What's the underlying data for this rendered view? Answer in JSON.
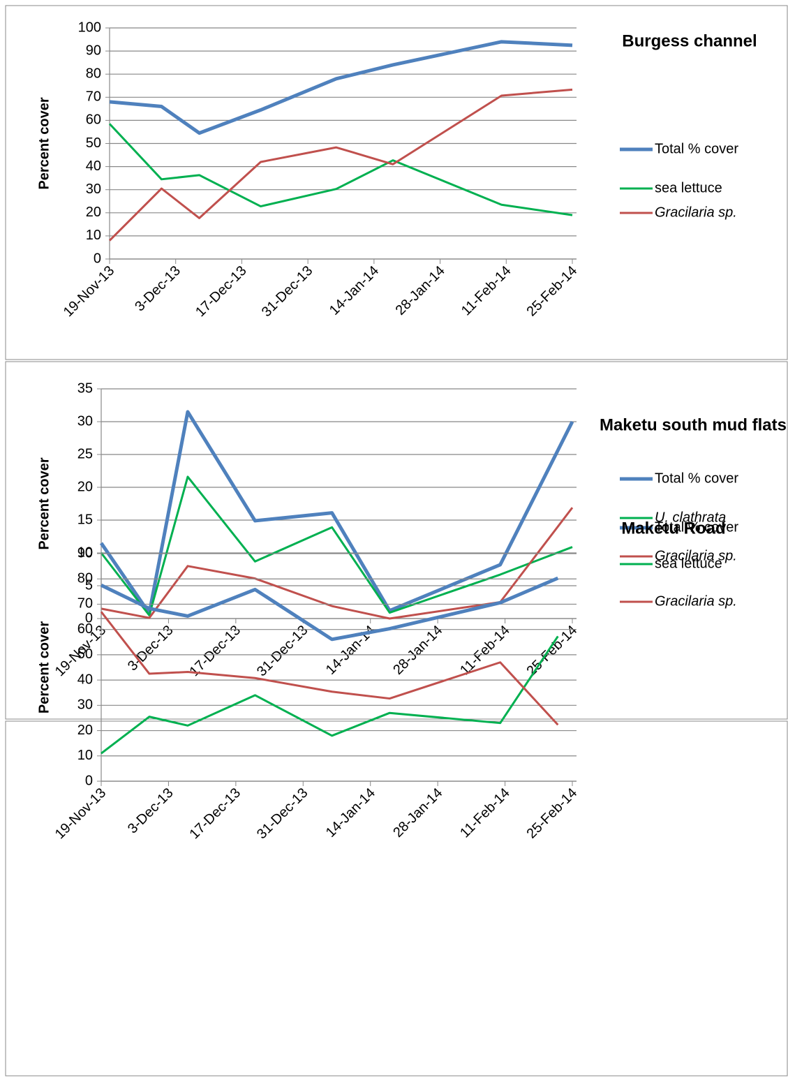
{
  "chart_data": [
    {
      "type": "line",
      "title": "Burgess channel",
      "y_label": "Percent cover",
      "x": [
        "2013-11-19",
        "2013-11-30",
        "2013-12-08",
        "2013-12-21",
        "2014-01-06",
        "2014-01-18",
        "2014-02-10",
        "2014-02-25"
      ],
      "series": [
        {
          "name": "Total % cover",
          "color": "#4f81bd",
          "values": [
            68,
            66,
            54.5,
            64.5,
            78,
            84,
            94,
            92.5
          ]
        },
        {
          "name": "sea lettuce",
          "color": "#00b050",
          "values": [
            58.5,
            34.5,
            36.3,
            22.8,
            30.3,
            42.7,
            23.5,
            19
          ]
        },
        {
          "name": "Gracilaria sp.",
          "color": "#c0504d",
          "italic": true,
          "values": [
            8,
            30.5,
            17.7,
            42,
            48.3,
            41,
            70.7,
            73.3
          ]
        }
      ],
      "ylim": [
        0,
        100
      ],
      "yticks": [
        0,
        10,
        20,
        30,
        40,
        50,
        60,
        70,
        80,
        90,
        100
      ],
      "xlim": [
        "2013-11-19",
        "2014-02-25"
      ],
      "xticks": [
        {
          "value": "2013-11-19",
          "label": "19-Nov-13"
        },
        {
          "value": "2013-12-03",
          "label": "3-Dec-13"
        },
        {
          "value": "2013-12-17",
          "label": "17-Dec-13"
        },
        {
          "value": "2013-12-31",
          "label": "31-Dec-13"
        },
        {
          "value": "2014-01-14",
          "label": "14-Jan-14"
        },
        {
          "value": "2014-01-28",
          "label": "28-Jan-14"
        },
        {
          "value": "2014-02-11",
          "label": "11-Feb-14"
        },
        {
          "value": "2014-02-25",
          "label": "25-Feb-14"
        }
      ],
      "grid": true,
      "legend": "right"
    },
    {
      "type": "line",
      "title": "Maketu south mud flats",
      "y_label": "Percent cover",
      "x": [
        "2013-11-19",
        "2013-11-29",
        "2013-12-07",
        "2013-12-21",
        "2014-01-06",
        "2014-01-18",
        "2014-02-10",
        "2014-02-25"
      ],
      "series": [
        {
          "name": "Total % cover",
          "color": "#4f81bd",
          "values": [
            11.5,
            0.8,
            31.5,
            14.9,
            16.1,
            1.2,
            8.2,
            30
          ]
        },
        {
          "name": "sea lettuce",
          "color": "#00b050",
          "values": [
            10,
            0.5,
            21.6,
            8.7,
            13.9,
            0.9,
            6.7,
            10.9
          ]
        },
        {
          "name": "Gracilaria sp.",
          "color": "#c0504d",
          "italic": true,
          "values": [
            1.5,
            0.1,
            8,
            6.1,
            1.9,
            0,
            2.5,
            16.9
          ]
        }
      ],
      "ylim": [
        0,
        35
      ],
      "yticks": [
        0,
        5,
        10,
        15,
        20,
        25,
        30,
        35
      ],
      "xlim": [
        "2013-11-19",
        "2014-02-25"
      ],
      "xticks": [
        {
          "value": "2013-11-19",
          "label": "19-Nov-13"
        },
        {
          "value": "2013-12-03",
          "label": "3-Dec-13"
        },
        {
          "value": "2013-12-17",
          "label": "17-Dec-13"
        },
        {
          "value": "2013-12-31",
          "label": "31-Dec-13"
        },
        {
          "value": "2014-01-14",
          "label": "14-Jan-14"
        },
        {
          "value": "2014-01-28",
          "label": "28-Jan-14"
        },
        {
          "value": "2014-02-11",
          "label": "11-Feb-14"
        },
        {
          "value": "2014-02-25",
          "label": "25-Feb-14"
        }
      ],
      "grid": true,
      "legend": "right"
    },
    {
      "type": "line",
      "title": "Maketu Road",
      "y_label": "Percent cover",
      "x": [
        "2013-11-19",
        "2013-11-29",
        "2013-12-07",
        "2013-12-21",
        "2014-01-06",
        "2014-01-18",
        "2014-02-10",
        "2014-02-22"
      ],
      "series": [
        {
          "name": "Total % cover",
          "color": "#4f81bd",
          "values": [
            77.5,
            68.3,
            65.3,
            75.8,
            56.1,
            60.3,
            70.6,
            80.3
          ]
        },
        {
          "name": "U. clathrata",
          "color": "#00b050",
          "italic": true,
          "values": [
            11,
            25.5,
            22,
            34,
            18,
            27,
            23,
            57.3
          ]
        },
        {
          "name": "Gracilaria sp.",
          "color": "#c0504d",
          "italic": true,
          "values": [
            67,
            42.5,
            43.2,
            40.8,
            35.4,
            32.7,
            47,
            22.3
          ]
        }
      ],
      "ylim": [
        0,
        90
      ],
      "yticks": [
        0,
        10,
        20,
        30,
        40,
        50,
        60,
        70,
        80,
        90
      ],
      "xlim": [
        "2013-11-19",
        "2014-02-25"
      ],
      "xticks": [
        {
          "value": "2013-11-19",
          "label": "19-Nov-13"
        },
        {
          "value": "2013-12-03",
          "label": "3-Dec-13"
        },
        {
          "value": "2013-12-17",
          "label": "17-Dec-13"
        },
        {
          "value": "2013-12-31",
          "label": "31-Dec-13"
        },
        {
          "value": "2014-01-14",
          "label": "14-Jan-14"
        },
        {
          "value": "2014-01-28",
          "label": "28-Jan-14"
        },
        {
          "value": "2014-02-11",
          "label": "11-Feb-14"
        },
        {
          "value": "2014-02-25",
          "label": "25-Feb-14"
        }
      ],
      "grid": true,
      "legend": "right"
    }
  ]
}
